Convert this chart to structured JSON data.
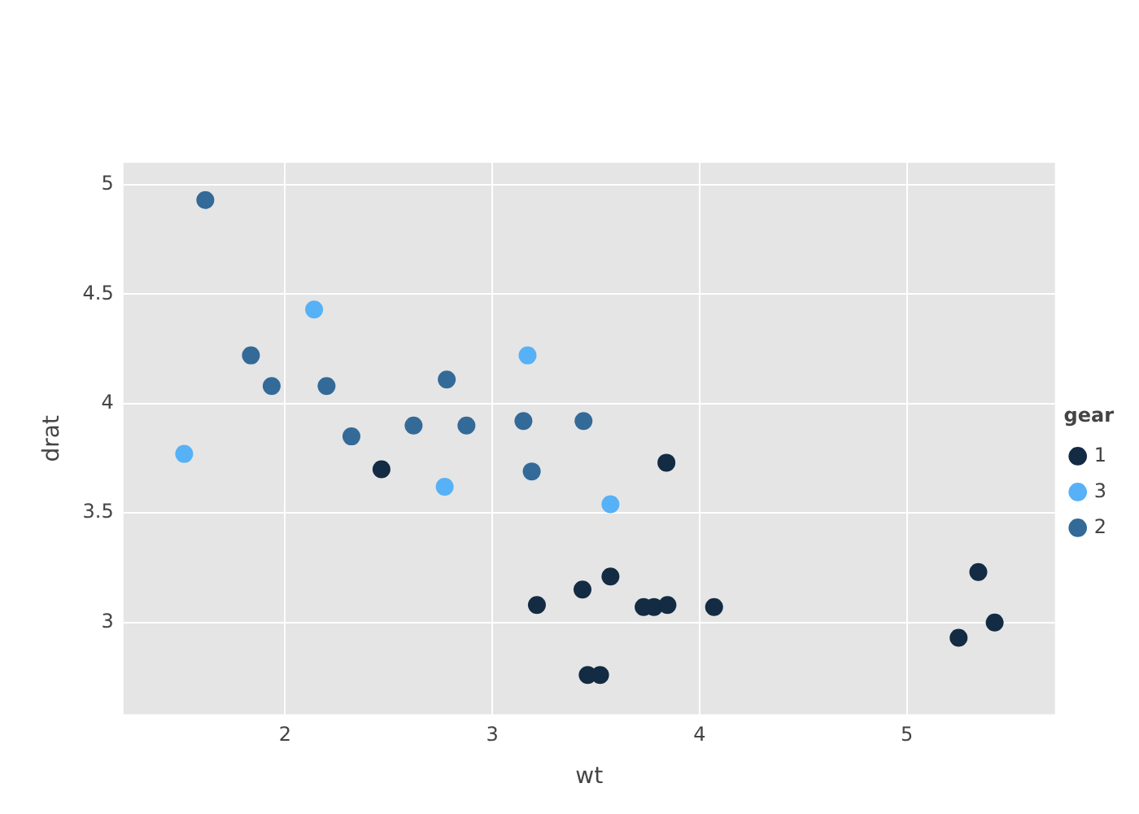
{
  "chart_data": {
    "type": "scatter",
    "xlabel": "wt",
    "ylabel": "drat",
    "legend_title": "gear",
    "legend": "right",
    "grid": true,
    "marker": "circle",
    "xlim": [
      1.22,
      5.715
    ],
    "xticks": [
      2,
      3,
      4,
      5
    ],
    "ylim": [
      2.58,
      5.1
    ],
    "yticks": [
      3,
      3.5,
      4,
      4.5,
      5
    ],
    "series": [
      {
        "name": "1",
        "color": "#132b43",
        "x": [
          3.215,
          3.46,
          3.57,
          4.07,
          3.73,
          3.78,
          5.25,
          5.424,
          5.345,
          2.465,
          3.52,
          3.435,
          3.84,
          3.845
        ],
        "values": [
          3.08,
          2.76,
          3.21,
          3.07,
          3.07,
          3.07,
          2.93,
          3.0,
          3.23,
          3.7,
          2.76,
          3.15,
          3.73,
          3.08
        ]
      },
      {
        "name": "3",
        "color": "#56b1f7",
        "x": [
          2.14,
          1.513,
          3.17,
          2.77,
          3.57
        ],
        "values": [
          4.43,
          3.77,
          4.22,
          3.62,
          3.54
        ]
      },
      {
        "name": "2",
        "color": "#336a98",
        "x": [
          2.62,
          2.875,
          2.32,
          3.19,
          3.15,
          3.44,
          2.2,
          1.615,
          1.835,
          1.935,
          2.78
        ],
        "values": [
          3.9,
          3.9,
          3.85,
          3.69,
          3.92,
          3.92,
          4.08,
          4.93,
          4.22,
          4.08,
          4.11
        ]
      }
    ]
  }
}
